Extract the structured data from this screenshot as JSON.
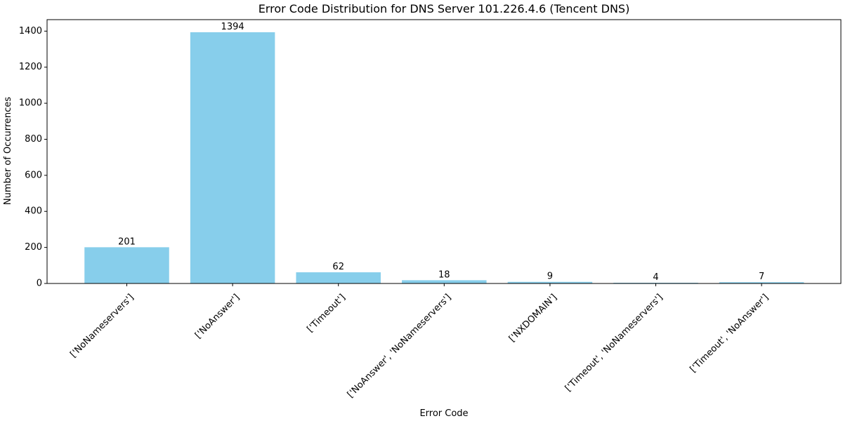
{
  "chart_data": {
    "type": "bar",
    "title": "Error Code Distribution for DNS Server 101.226.4.6 (Tencent DNS)",
    "xlabel": "Error Code",
    "ylabel": "Number of Occurrences",
    "categories": [
      "['NoNameservers']",
      "['NoAnswer']",
      "['Timeout']",
      "['NoAnswer', 'NoNameservers']",
      "['NXDOMAIN']",
      "['Timeout', 'NoNameservers']",
      "['Timeout', 'NoAnswer']"
    ],
    "values": [
      201,
      1394,
      62,
      18,
      9,
      4,
      7
    ],
    "ylim": [
      0,
      1463.7
    ],
    "yticks": [
      0,
      200,
      400,
      600,
      800,
      1000,
      1200,
      1400
    ],
    "bar_color": "#87ceeb",
    "grid": false,
    "legend": "none",
    "data_labels": true
  }
}
